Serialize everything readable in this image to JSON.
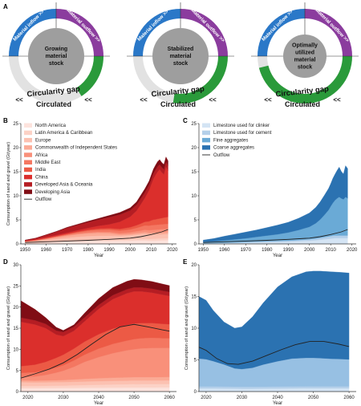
{
  "panel_labels": [
    "A",
    "B",
    "C",
    "D",
    "E"
  ],
  "circle_diagrams": [
    {
      "center_text": [
        "Growing",
        "material",
        "stock"
      ],
      "inflow": "Material inflow",
      "outflow": "Material outflow",
      "gap": "Circularity gap",
      "circulated": "Circulated",
      "circulated_fraction": 0.32
    },
    {
      "center_text": [
        "Stabilized",
        "material",
        "stock"
      ],
      "inflow": "Material inflow",
      "outflow": "Material outflow",
      "gap": "Circularity gap",
      "circulated": "Circulated",
      "circulated_fraction": 0.55
    },
    {
      "center_text": [
        "Optimally",
        "utilized",
        "material",
        "stock"
      ],
      "inflow": "Material inflow",
      "outflow": "Material outflow",
      "gap": "Circularity gap",
      "circulated": "Circulated",
      "circulated_fraction": 0.92
    }
  ],
  "arrows": {
    "inflow": ">>",
    "outflow": ">>",
    "circulated": "<<"
  },
  "colors": {
    "inflow": "#2a78c8",
    "outflow": "#8b3c9e",
    "circulated": "#2a9a3a",
    "gap": "#e2e2e2",
    "stock": "#9e9e9e"
  },
  "chart_data": [
    {
      "panel": "B",
      "type": "area",
      "stacked": true,
      "xlabel": "Year",
      "ylabel": "Consumption of sand and gravel (Gt/year)",
      "xlim": [
        1948,
        2022
      ],
      "ylim": [
        0,
        25
      ],
      "xticks": [
        1950,
        1960,
        1970,
        1980,
        1990,
        2000,
        2010,
        2020
      ],
      "yticks": [
        0,
        5,
        10,
        15,
        20,
        25
      ],
      "legend_position": "top-left",
      "x": [
        1950,
        1955,
        1960,
        1965,
        1970,
        1975,
        1980,
        1985,
        1990,
        1995,
        2000,
        2003,
        2005,
        2007,
        2009,
        2010,
        2011,
        2012,
        2013,
        2014,
        2015,
        2016,
        2017,
        2018
      ],
      "series": [
        {
          "name": "North America",
          "color": "#fde3dd",
          "values": [
            0.15,
            0.2,
            0.3,
            0.4,
            0.45,
            0.5,
            0.55,
            0.6,
            0.6,
            0.6,
            0.65,
            0.7,
            0.7,
            0.72,
            0.65,
            0.65,
            0.65,
            0.66,
            0.68,
            0.7,
            0.72,
            0.74,
            0.75,
            0.76
          ]
        },
        {
          "name": "Latin America & Caribbean",
          "color": "#fcd2c6",
          "values": [
            0.05,
            0.06,
            0.08,
            0.1,
            0.14,
            0.18,
            0.22,
            0.24,
            0.26,
            0.28,
            0.3,
            0.32,
            0.34,
            0.36,
            0.38,
            0.4,
            0.42,
            0.42,
            0.42,
            0.42,
            0.42,
            0.42,
            0.42,
            0.42
          ]
        },
        {
          "name": "Europe",
          "color": "#fcc1b1",
          "values": [
            0.2,
            0.3,
            0.4,
            0.55,
            0.7,
            0.8,
            0.85,
            0.85,
            0.85,
            0.8,
            0.85,
            0.9,
            0.95,
            1.0,
            0.9,
            0.88,
            0.88,
            0.86,
            0.86,
            0.86,
            0.86,
            0.86,
            0.86,
            0.86
          ]
        },
        {
          "name": "Commonwealth of Independent States",
          "color": "#fbab96",
          "values": [
            0.05,
            0.1,
            0.2,
            0.3,
            0.4,
            0.5,
            0.55,
            0.6,
            0.55,
            0.25,
            0.25,
            0.3,
            0.32,
            0.35,
            0.35,
            0.36,
            0.37,
            0.38,
            0.38,
            0.38,
            0.38,
            0.38,
            0.38,
            0.38
          ]
        },
        {
          "name": "Africa",
          "color": "#f9907a",
          "values": [
            0.05,
            0.06,
            0.08,
            0.1,
            0.13,
            0.16,
            0.2,
            0.22,
            0.25,
            0.3,
            0.35,
            0.4,
            0.45,
            0.5,
            0.55,
            0.58,
            0.6,
            0.62,
            0.64,
            0.66,
            0.68,
            0.7,
            0.72,
            0.74
          ]
        },
        {
          "name": "Middle East",
          "color": "#f47761",
          "values": [
            0.03,
            0.05,
            0.07,
            0.1,
            0.15,
            0.25,
            0.35,
            0.4,
            0.45,
            0.5,
            0.6,
            0.7,
            0.8,
            0.9,
            0.95,
            1.0,
            1.0,
            1.0,
            1.0,
            1.0,
            1.0,
            1.0,
            1.0,
            1.0
          ]
        },
        {
          "name": "India",
          "color": "#ec5a45",
          "values": [
            0.05,
            0.06,
            0.08,
            0.1,
            0.12,
            0.15,
            0.2,
            0.25,
            0.3,
            0.35,
            0.45,
            0.55,
            0.65,
            0.75,
            0.9,
            1.0,
            1.1,
            1.15,
            1.2,
            1.25,
            1.3,
            1.35,
            1.4,
            1.45
          ]
        },
        {
          "name": "China",
          "color": "#db2f2c",
          "values": [
            0.05,
            0.1,
            0.2,
            0.2,
            0.25,
            0.3,
            0.4,
            0.6,
            0.8,
            1.5,
            2.2,
            3.0,
            4.0,
            5.0,
            6.5,
            7.5,
            8.5,
            9.2,
            9.8,
            10.2,
            9.5,
            9.0,
            10.5,
            9.6
          ]
        },
        {
          "name": "Developed Asia & Oceania",
          "color": "#b51d23",
          "values": [
            0.15,
            0.25,
            0.45,
            0.7,
            1.0,
            1.1,
            1.2,
            1.3,
            1.5,
            1.5,
            1.3,
            1.25,
            1.2,
            1.15,
            1.1,
            1.1,
            1.1,
            1.1,
            1.1,
            1.05,
            1.05,
            1.05,
            1.05,
            1.05
          ]
        },
        {
          "name": "Developing Asia",
          "color": "#800d15",
          "values": [
            0.02,
            0.03,
            0.05,
            0.08,
            0.12,
            0.15,
            0.2,
            0.25,
            0.35,
            0.45,
            0.55,
            0.6,
            0.7,
            0.75,
            0.8,
            0.85,
            0.9,
            0.95,
            1.0,
            1.0,
            1.0,
            1.0,
            1.0,
            1.0
          ]
        }
      ],
      "line": {
        "name": "Outflow",
        "color": "#222222",
        "x": [
          1950,
          1960,
          1970,
          1980,
          1990,
          2000,
          2005,
          2010,
          2015,
          2018
        ],
        "values": [
          0.3,
          0.45,
          0.6,
          0.75,
          0.95,
          1.2,
          1.5,
          1.95,
          2.5,
          3.0
        ]
      }
    },
    {
      "panel": "C",
      "type": "area",
      "stacked": true,
      "xlabel": "Year",
      "ylabel": "",
      "xlim": [
        1948,
        2022
      ],
      "ylim": [
        0,
        25
      ],
      "xticks": [
        1950,
        1960,
        1970,
        1980,
        1990,
        2000,
        2010,
        2020
      ],
      "yticks": [
        0,
        5,
        10,
        15,
        20,
        25
      ],
      "legend_position": "top-left",
      "x": [
        1950,
        1955,
        1960,
        1965,
        1970,
        1975,
        1980,
        1985,
        1990,
        1995,
        2000,
        2003,
        2005,
        2007,
        2009,
        2010,
        2011,
        2012,
        2013,
        2014,
        2015,
        2016,
        2017,
        2018
      ],
      "series": [
        {
          "name": "Limestone used for clinker",
          "color": "#d4e4f4",
          "values": [
            0.1,
            0.12,
            0.15,
            0.2,
            0.25,
            0.3,
            0.35,
            0.4,
            0.45,
            0.55,
            0.65,
            0.75,
            0.85,
            0.95,
            1.05,
            1.1,
            1.15,
            1.2,
            1.2,
            1.2,
            1.2,
            1.2,
            1.2,
            1.2
          ]
        },
        {
          "name": "Limestone used for cement",
          "color": "#b5d0ea",
          "values": [
            0.05,
            0.06,
            0.08,
            0.1,
            0.12,
            0.15,
            0.18,
            0.2,
            0.22,
            0.25,
            0.3,
            0.35,
            0.4,
            0.45,
            0.5,
            0.52,
            0.55,
            0.56,
            0.56,
            0.56,
            0.56,
            0.56,
            0.56,
            0.56
          ]
        },
        {
          "name": "Fine aggregates",
          "color": "#6aaad6",
          "values": [
            0.25,
            0.35,
            0.5,
            0.65,
            0.8,
            1.0,
            1.2,
            1.4,
            1.7,
            2.1,
            2.6,
            3.2,
            3.8,
            4.6,
            5.5,
            6.2,
            6.8,
            7.3,
            7.7,
            8.0,
            7.7,
            7.5,
            8.0,
            7.7
          ]
        },
        {
          "name": "Coarse aggregates",
          "color": "#2b72b1",
          "values": [
            0.4,
            0.6,
            0.88,
            1.08,
            1.29,
            1.44,
            1.67,
            1.91,
            2.13,
            2.45,
            2.89,
            3.3,
            3.66,
            4.08,
            4.47,
            4.68,
            5.1,
            5.4,
            5.8,
            6.2,
            5.6,
            5.26,
            6.5,
            6.18
          ]
        }
      ],
      "line": {
        "name": "Outflow",
        "color": "#222222",
        "x": [
          1950,
          1960,
          1970,
          1980,
          1990,
          2000,
          2005,
          2010,
          2015,
          2018
        ],
        "values": [
          0.3,
          0.45,
          0.6,
          0.75,
          0.95,
          1.2,
          1.5,
          1.95,
          2.5,
          3.0
        ]
      }
    },
    {
      "panel": "D",
      "type": "area",
      "stacked": true,
      "xlabel": "Year",
      "ylabel": "Consumption of sand and gravel (Gt/year)",
      "xlim": [
        2018,
        2062
      ],
      "ylim": [
        0,
        30
      ],
      "xticks": [
        2020,
        2030,
        2040,
        2050,
        2060
      ],
      "yticks": [
        0,
        5,
        10,
        15,
        20,
        25,
        30
      ],
      "x": [
        2018,
        2020,
        2022,
        2025,
        2028,
        2030,
        2033,
        2036,
        2040,
        2044,
        2048,
        2050,
        2052,
        2055,
        2058,
        2060
      ],
      "series": [
        {
          "name": "North America",
          "color": "#fde3dd",
          "values": [
            0.8,
            0.8,
            0.8,
            0.82,
            0.84,
            0.85,
            0.86,
            0.88,
            0.9,
            0.92,
            0.94,
            0.95,
            0.95,
            0.96,
            0.97,
            0.98
          ]
        },
        {
          "name": "Latin America & Caribbean",
          "color": "#fcd2c6",
          "values": [
            0.5,
            0.5,
            0.5,
            0.52,
            0.54,
            0.55,
            0.6,
            0.65,
            0.7,
            0.75,
            0.78,
            0.8,
            0.8,
            0.8,
            0.8,
            0.8
          ]
        },
        {
          "name": "Europe",
          "color": "#fcc1b1",
          "values": [
            0.9,
            0.88,
            0.86,
            0.85,
            0.84,
            0.84,
            0.84,
            0.85,
            0.85,
            0.85,
            0.85,
            0.85,
            0.85,
            0.85,
            0.85,
            0.85
          ]
        },
        {
          "name": "Commonwealth of Independent States",
          "color": "#fbab96",
          "values": [
            0.4,
            0.4,
            0.4,
            0.42,
            0.45,
            0.48,
            0.55,
            0.62,
            0.7,
            0.75,
            0.78,
            0.8,
            0.8,
            0.8,
            0.8,
            0.8
          ]
        },
        {
          "name": "Africa",
          "color": "#f9907a",
          "values": [
            0.8,
            0.9,
            1.0,
            1.3,
            1.8,
            2.2,
            3.0,
            4.0,
            5.0,
            5.8,
            6.4,
            6.6,
            6.8,
            6.9,
            6.9,
            6.9
          ]
        },
        {
          "name": "Middle East",
          "color": "#f47761",
          "values": [
            1.0,
            1.0,
            1.0,
            1.1,
            1.2,
            1.3,
            1.5,
            1.7,
            2.0,
            2.2,
            2.3,
            2.4,
            2.4,
            2.4,
            2.3,
            2.3
          ]
        },
        {
          "name": "India",
          "color": "#ec5a45",
          "values": [
            1.6,
            1.7,
            1.8,
            2.0,
            2.3,
            2.5,
            2.8,
            3.1,
            3.4,
            3.6,
            3.7,
            3.7,
            3.6,
            3.5,
            3.4,
            3.3
          ]
        },
        {
          "name": "China",
          "color": "#db2f2c",
          "values": [
            10.5,
            10.0,
            9.5,
            8.0,
            5.5,
            4.4,
            4.2,
            4.8,
            6.0,
            7.0,
            7.5,
            7.6,
            7.5,
            7.2,
            6.9,
            6.7
          ]
        },
        {
          "name": "Developed Asia & Oceania",
          "color": "#b51d23",
          "values": [
            1.0,
            1.0,
            1.0,
            1.0,
            0.95,
            0.95,
            0.95,
            0.95,
            0.95,
            0.95,
            0.95,
            0.95,
            0.95,
            0.95,
            0.95,
            0.95
          ]
        },
        {
          "name": "Developing Asia",
          "color": "#800d15",
          "values": [
            4.0,
            3.3,
            2.6,
            1.5,
            0.8,
            0.4,
            0.5,
            1.0,
            1.5,
            1.8,
            1.9,
            1.9,
            1.8,
            1.7,
            1.6,
            1.5
          ]
        }
      ],
      "line": {
        "name": "Outflow",
        "color": "#222222",
        "x": [
          2018,
          2022,
          2026,
          2030,
          2034,
          2038,
          2042,
          2046,
          2050,
          2054,
          2058,
          2060
        ],
        "values": [
          3.2,
          4.2,
          5.3,
          6.8,
          8.8,
          11.2,
          13.5,
          15.3,
          15.9,
          15.3,
          14.6,
          14.3
        ]
      }
    },
    {
      "panel": "E",
      "type": "area",
      "stacked": true,
      "xlabel": "Year",
      "ylabel": "Consumption of sand and gravel (Gt/year)",
      "xlim": [
        2018,
        2062
      ],
      "ylim": [
        0,
        20
      ],
      "xticks": [
        2020,
        2030,
        2040,
        2050,
        2060
      ],
      "yticks": [
        0,
        5,
        10,
        15,
        20
      ],
      "x": [
        2018,
        2020,
        2022,
        2025,
        2028,
        2030,
        2033,
        2036,
        2040,
        2044,
        2048,
        2050,
        2052,
        2055,
        2058,
        2060
      ],
      "series": [
        {
          "name": "Limestone used for clinker",
          "color": "#d4e4f4",
          "values": [
            0.5,
            0.5,
            0.5,
            0.48,
            0.46,
            0.45,
            0.45,
            0.46,
            0.48,
            0.5,
            0.52,
            0.52,
            0.52,
            0.52,
            0.52,
            0.52
          ]
        },
        {
          "name": "Limestone used for cement",
          "color": "#b5d0ea",
          "values": [
            0.3,
            0.3,
            0.3,
            0.3,
            0.3,
            0.3,
            0.3,
            0.3,
            0.3,
            0.3,
            0.3,
            0.3,
            0.3,
            0.3,
            0.3,
            0.3
          ]
        },
        {
          "name": "Fine aggregates",
          "color": "#97c0e3",
          "values": [
            4.4,
            4.3,
            4.0,
            3.5,
            2.9,
            2.8,
            3.0,
            3.5,
            4.0,
            4.4,
            4.5,
            4.5,
            4.45,
            4.35,
            4.3,
            4.25
          ]
        },
        {
          "name": "Coarse aggregates",
          "color": "#2b72b1",
          "values": [
            9.8,
            9.3,
            8.0,
            6.7,
            6.34,
            6.65,
            8.05,
            9.74,
            11.72,
            12.9,
            13.58,
            13.68,
            13.73,
            13.73,
            13.68,
            13.63
          ]
        }
      ],
      "line": {
        "name": "Outflow",
        "color": "#222222",
        "x": [
          2018,
          2020,
          2023,
          2026,
          2029,
          2033,
          2037,
          2041,
          2045,
          2049,
          2053,
          2057,
          2060
        ],
        "values": [
          7.0,
          6.5,
          5.2,
          4.4,
          4.3,
          4.8,
          5.7,
          6.6,
          7.4,
          7.9,
          7.9,
          7.5,
          7.1
        ]
      }
    }
  ]
}
